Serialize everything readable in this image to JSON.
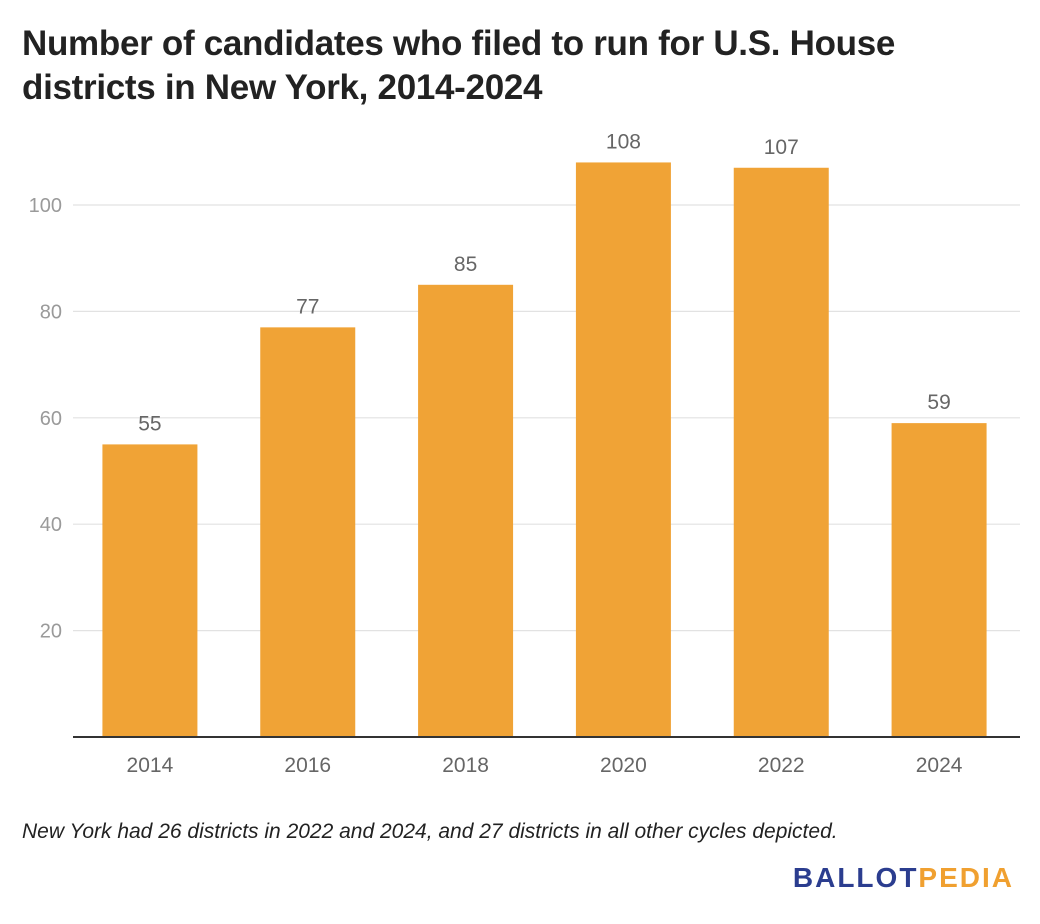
{
  "colors": {
    "bar": "#f0a336",
    "grid": "#e2e2e2",
    "axis": "#333333",
    "tick_label": "#9a9a9a",
    "category_label": "#666666",
    "data_label": "#666666",
    "logo_primary": "#2b3d8f",
    "logo_accent": "#f0a030"
  },
  "chart_data": {
    "type": "bar",
    "title": "Number of candidates who filed to run for U.S. House districts in New York, 2014-2024",
    "categories": [
      "2014",
      "2016",
      "2018",
      "2020",
      "2022",
      "2024"
    ],
    "values": [
      55,
      77,
      85,
      108,
      107,
      59
    ],
    "xlabel": "",
    "ylabel": "",
    "ylim": [
      0,
      115
    ],
    "yticks": [
      20,
      40,
      60,
      80,
      100
    ],
    "grid": true,
    "legend": "none",
    "note": "New York had 26 districts in 2022 and 2024, and 27 districts in all other cycles depicted."
  },
  "logo": {
    "part1": "BALLOT",
    "part2": "PEDIA"
  }
}
